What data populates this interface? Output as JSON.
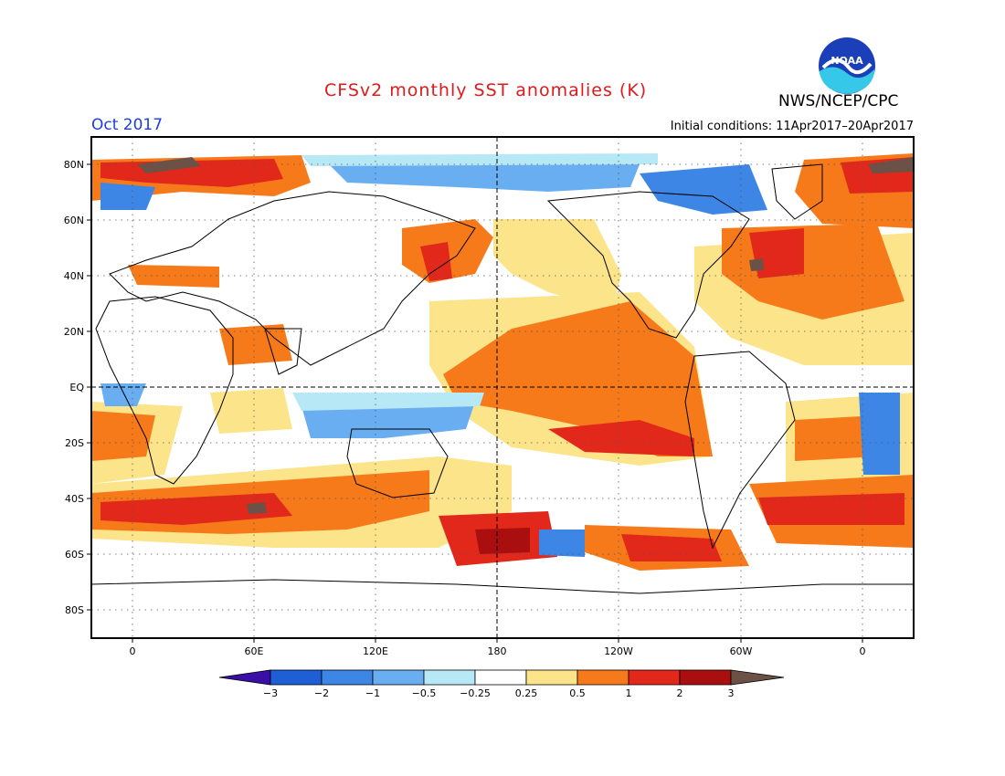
{
  "title": "CFSv2 monthly SST anomalies (K)",
  "agency": "NWS/NCEP/CPC",
  "logo_text": "NOAA",
  "valid_month": "Oct 2017",
  "initial_conditions": "Initial conditions: 11Apr2017–20Apr2017",
  "lat_labels": [
    "80N",
    "60N",
    "40N",
    "20N",
    "EQ",
    "20S",
    "40S",
    "60S",
    "80S"
  ],
  "lon_labels": [
    "0",
    "60E",
    "120E",
    "180",
    "120W",
    "60W",
    "0"
  ],
  "colorbar": {
    "labels": [
      "−3",
      "−2",
      "−1",
      "−0.5",
      "−0.25",
      "0.25",
      "0.5",
      "1",
      "2",
      "3"
    ],
    "colors": [
      "#3a0fa8",
      "#1f5fd6",
      "#3d86e6",
      "#6aaef2",
      "#b7e8f5",
      "#ffffff",
      "#fce48a",
      "#f77a1a",
      "#e2281b",
      "#a90f0f",
      "#6b5146"
    ]
  },
  "colors": {
    "title": "#e0191b",
    "month": "#1c3fd6",
    "land_outline": "#000000",
    "grid": "#555555"
  }
}
